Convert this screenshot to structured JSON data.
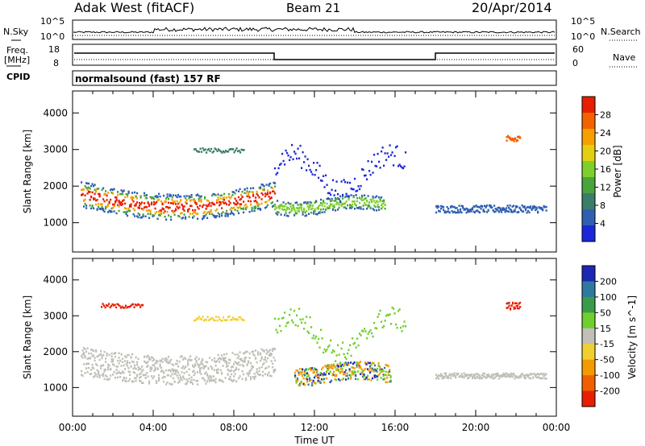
{
  "header": {
    "site": "Adak West (fitACF)",
    "beam": "Beam 21",
    "date": "20/Apr/2014"
  },
  "side_labels": {
    "nsky": "N.Sky",
    "freq_line1": "Freq.",
    "freq_line2": "[MHz]",
    "cpid": "CPID",
    "nsearch": "N.Search",
    "nave": "Nave"
  },
  "cpid_text": "normalsound (fast) 157 RF",
  "noise_panel": {
    "left_ticks": [
      "10^5",
      "10^0"
    ],
    "right_ticks": [
      "10^5",
      "10^0"
    ]
  },
  "freq_panel": {
    "left_ticks": [
      "18",
      "8"
    ],
    "right_ticks": [
      "60",
      "0"
    ]
  },
  "chart_data": [
    {
      "type": "heatmap",
      "title": "",
      "xlabel": "Time UT",
      "ylabel": "Slant Range [km]",
      "x_ticks": [
        "00:00",
        "04:00",
        "08:00",
        "12:00",
        "16:00",
        "20:00",
        "00:00"
      ],
      "x_range_hours": [
        0,
        24
      ],
      "y_ticks": [
        1000,
        2000,
        3000,
        4000
      ],
      "ylim": [
        200,
        4600
      ],
      "colorbar": {
        "label": "Power [dB]",
        "ticks": [
          4,
          8,
          12,
          16,
          20,
          24,
          28
        ],
        "range": [
          0,
          32
        ],
        "colors": [
          "#1c28d8",
          "#2f5fb0",
          "#3a7d6a",
          "#4aa43c",
          "#7fcf2c",
          "#e3cf10",
          "#f5a000",
          "#f26200",
          "#e81e00"
        ]
      }
    },
    {
      "type": "heatmap",
      "title": "",
      "xlabel": "Time UT",
      "ylabel": "Slant Range [km]",
      "x_ticks": [
        "00:00",
        "04:00",
        "08:00",
        "12:00",
        "16:00",
        "20:00",
        "00:00"
      ],
      "x_range_hours": [
        0,
        24
      ],
      "y_ticks": [
        1000,
        2000,
        3000,
        4000
      ],
      "ylim": [
        200,
        4600
      ],
      "colorbar": {
        "label": "Velocity [m s^-1]",
        "ticks": [
          200,
          100,
          50,
          15,
          -15,
          -50,
          -100,
          -200
        ],
        "range": [
          -250,
          250
        ],
        "colors": [
          "#1c28b4",
          "#2f78a0",
          "#3a9c4a",
          "#6fcf2c",
          "#c0c0b8",
          "#f0d030",
          "#f39a00",
          "#f06000",
          "#e81e00"
        ]
      }
    }
  ]
}
